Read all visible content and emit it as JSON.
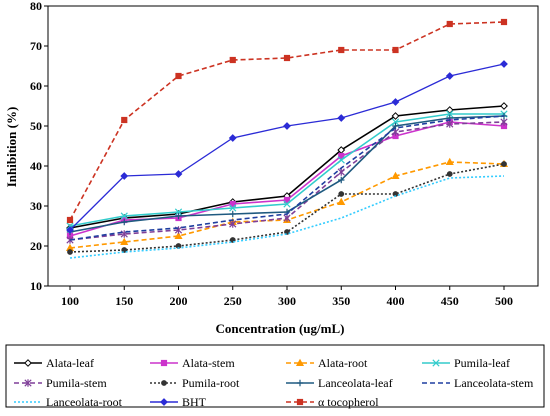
{
  "chart_data": {
    "type": "line",
    "title": "",
    "xlabel": "Concentration (ug/mL)",
    "ylabel": "Inhibition (%)",
    "categories": [
      "100",
      "150",
      "200",
      "250",
      "300",
      "350",
      "400",
      "450",
      "500"
    ],
    "ylim": [
      10,
      80
    ],
    "yticks": [
      "10",
      "20",
      "30",
      "40",
      "50",
      "60",
      "70",
      "80"
    ],
    "grid": false,
    "legend_position": "bottom",
    "series": [
      {
        "name": "Alata-leaf",
        "values": [
          24.5,
          27,
          28,
          31,
          32.5,
          44,
          52.5,
          54,
          55
        ],
        "color": "#000000",
        "dash": "solid",
        "marker": "diamond-open"
      },
      {
        "name": "Alata-stem",
        "values": [
          22.5,
          26.5,
          27,
          30.5,
          31.5,
          42.5,
          47.5,
          51,
          50
        ],
        "color": "#cc33cc",
        "dash": "solid",
        "marker": "square"
      },
      {
        "name": "Alata-root",
        "values": [
          19.5,
          21,
          22.5,
          26,
          26.5,
          31,
          37.5,
          41,
          40.5
        ],
        "color": "#ff9900",
        "dash": "dashed",
        "marker": "triangle"
      },
      {
        "name": "Pumila-leaf",
        "values": [
          25,
          27.5,
          28.5,
          29.5,
          30.5,
          41.5,
          51,
          53,
          53
        ],
        "color": "#33cccc",
        "dash": "solid",
        "marker": "x"
      },
      {
        "name": "Pumila-stem",
        "values": [
          21.5,
          23,
          24,
          25.5,
          27,
          38.5,
          48.5,
          50.5,
          51
        ],
        "color": "#7f3f98",
        "dash": "dashed",
        "marker": "star"
      },
      {
        "name": "Pumila-root",
        "values": [
          18.5,
          19,
          20,
          21.5,
          23.5,
          33,
          33,
          38,
          40.5
        ],
        "color": "#333333",
        "dash": "dotted",
        "marker": "circle"
      },
      {
        "name": "Lanceolata-leaf",
        "values": [
          23.5,
          26,
          27.5,
          28,
          28.5,
          36.5,
          50,
          52,
          52.5
        ],
        "color": "#1f5a80",
        "dash": "solid",
        "marker": "plus"
      },
      {
        "name": "Lanceolata-stem",
        "values": [
          21.5,
          23.5,
          24.5,
          26.5,
          28,
          39.5,
          49.5,
          51.5,
          52.5
        ],
        "color": "#1f3fa0",
        "dash": "dashed",
        "marker": "none"
      },
      {
        "name": "Lanceolata-root",
        "values": [
          17,
          18.5,
          19.5,
          21,
          23,
          27,
          32.5,
          37,
          37.5
        ],
        "color": "#33ccff",
        "dash": "dotted",
        "marker": "none"
      },
      {
        "name": "BHT",
        "values": [
          24,
          37.5,
          38,
          47,
          50,
          52,
          56,
          62.5,
          65.5
        ],
        "color": "#2b2bd6",
        "dash": "solid",
        "marker": "diamond"
      },
      {
        "name": "α tocopherol",
        "values": [
          26.5,
          51.5,
          62.5,
          66.5,
          67,
          69,
          69,
          75.5,
          76
        ],
        "color": "#cc3322",
        "dash": "dashed",
        "marker": "square"
      }
    ]
  }
}
